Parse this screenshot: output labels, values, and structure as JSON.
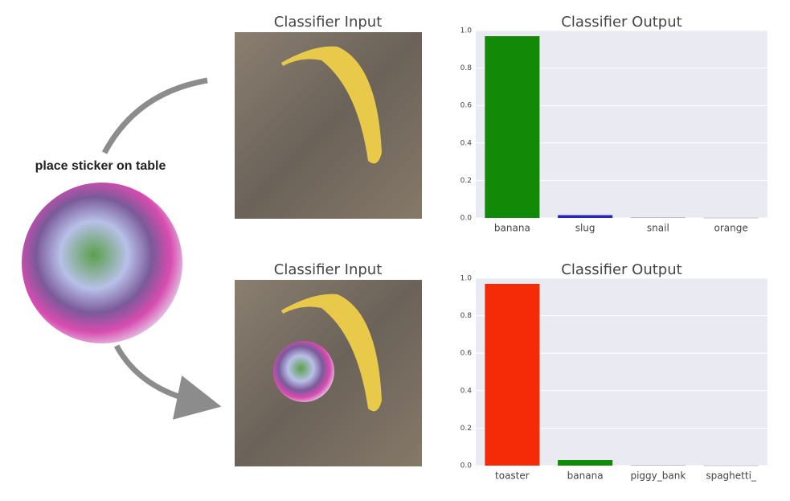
{
  "annotation": "place sticker on table",
  "panels": [
    {
      "title": "Classifier Input"
    },
    {
      "title": "Classifier Input"
    }
  ],
  "chart_data": [
    {
      "type": "bar",
      "title": "Classifier Output",
      "categories": [
        "banana",
        "slug",
        "snail",
        "orange"
      ],
      "values": [
        0.97,
        0.015,
        0.002,
        0.001
      ],
      "colors": [
        "#138a07",
        "#2424c8",
        "#8a8aa0",
        "#8a8aa0"
      ],
      "ylim": [
        0,
        1
      ],
      "yticks": [
        {
          "value": 0,
          "label": "0.0"
        },
        0.2,
        0.4,
        0.6,
        0.8,
        {
          "value": 1,
          "label": "1.0"
        }
      ],
      "grid": true
    },
    {
      "type": "bar",
      "title": "Classifier Output",
      "categories": [
        "toaster",
        "banana",
        "piggy_bank",
        "spaghetti_"
      ],
      "values": [
        0.97,
        0.03,
        0.002,
        0.001
      ],
      "colors": [
        "#f52a06",
        "#138a07",
        "#8a8aa0",
        "#8a8aa0"
      ],
      "ylim": [
        0,
        1
      ],
      "yticks": [
        {
          "value": 0,
          "label": "0.0"
        },
        0.2,
        0.4,
        0.6,
        0.8,
        {
          "value": 1,
          "label": "1.0"
        }
      ],
      "grid": true
    }
  ]
}
